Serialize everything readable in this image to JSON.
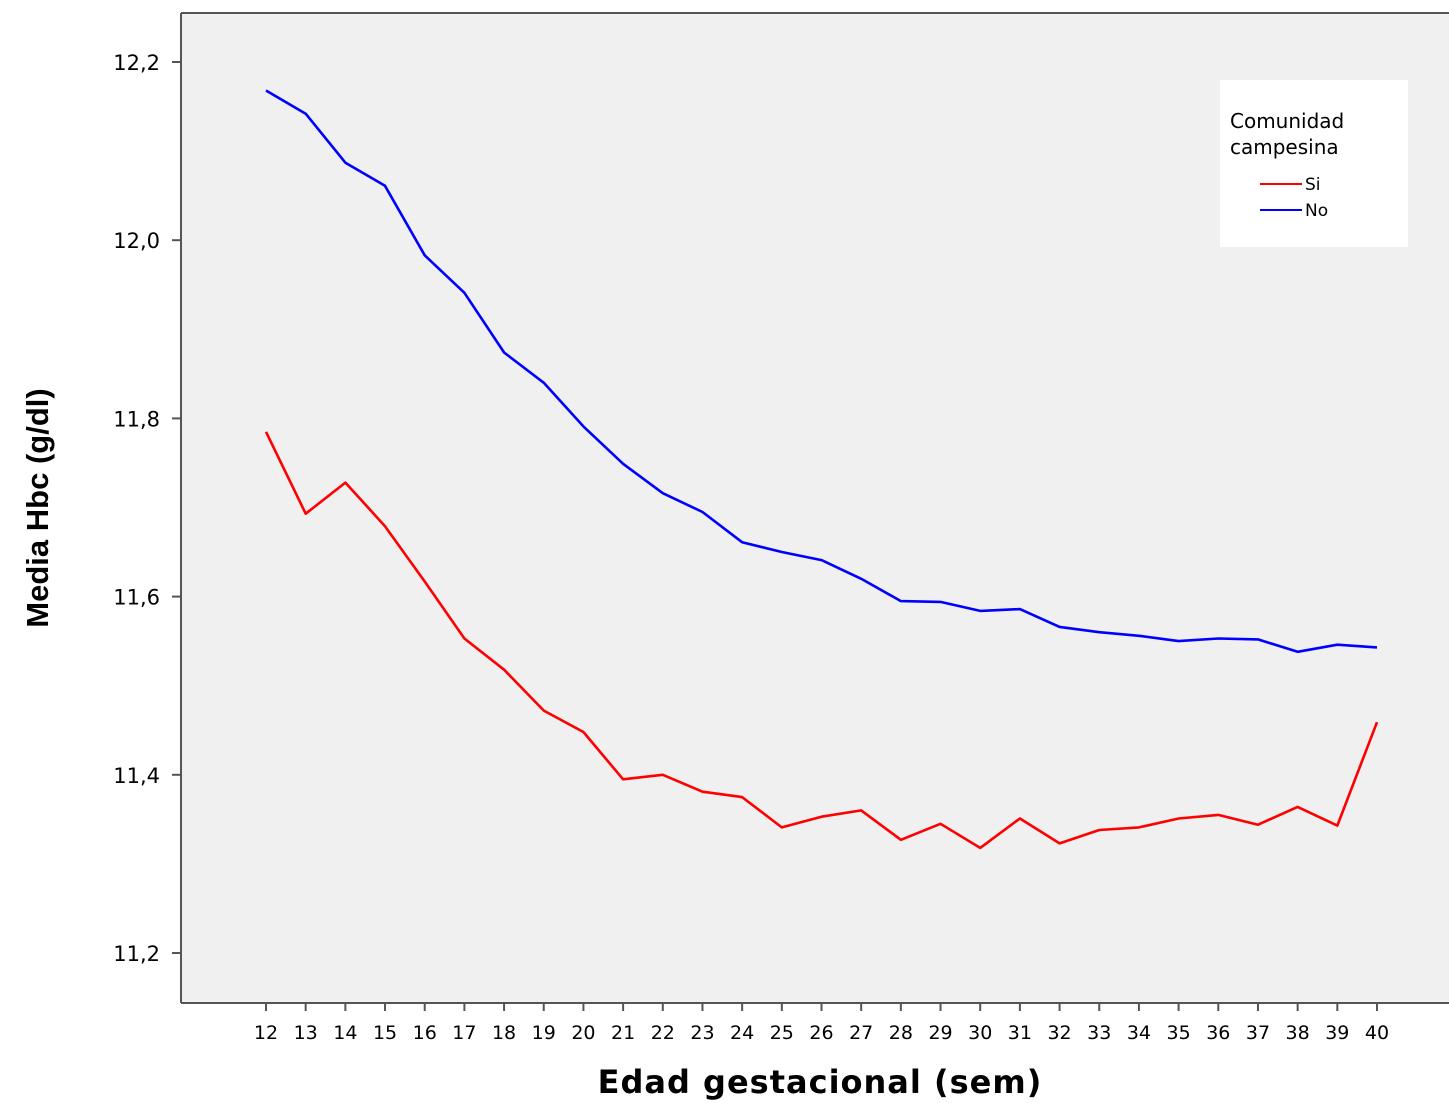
{
  "chart_data": {
    "type": "line",
    "xlabel": "Edad gestacional (sem)",
    "ylabel": "Media Hbc (g/dl)",
    "x": [
      12,
      13,
      14,
      15,
      16,
      17,
      18,
      19,
      20,
      21,
      22,
      23,
      24,
      25,
      26,
      27,
      28,
      29,
      30,
      31,
      32,
      33,
      34,
      35,
      36,
      37,
      38,
      39,
      40
    ],
    "ylim": [
      11.14,
      12.25
    ],
    "yticks": [
      "11,2",
      "11,4",
      "11,6",
      "11,8",
      "12,0",
      "12,2"
    ],
    "ytick_values": [
      11.2,
      11.4,
      11.6,
      11.8,
      12.0,
      12.2
    ],
    "grid": false,
    "legend": {
      "title": "Comunidad campesina",
      "title_lines": [
        "Comunidad",
        "campesina"
      ],
      "placement": "top-right"
    },
    "series": [
      {
        "name": "Si",
        "color": "#ff0000",
        "values": [
          11.785,
          11.693,
          11.728,
          11.679,
          11.617,
          11.553,
          11.518,
          11.472,
          11.448,
          11.395,
          11.4,
          11.381,
          11.375,
          11.341,
          11.353,
          11.36,
          11.327,
          11.345,
          11.318,
          11.351,
          11.323,
          11.338,
          11.341,
          11.351,
          11.355,
          11.344,
          11.364,
          11.343,
          11.459
        ]
      },
      {
        "name": "No",
        "color": "#0000ff",
        "values": [
          12.168,
          12.142,
          12.087,
          12.061,
          11.983,
          11.941,
          11.874,
          11.84,
          11.791,
          11.749,
          11.716,
          11.695,
          11.661,
          11.65,
          11.641,
          11.62,
          11.595,
          11.594,
          11.584,
          11.586,
          11.566,
          11.56,
          11.556,
          11.55,
          11.553,
          11.552,
          11.538,
          11.546,
          11.543
        ]
      }
    ]
  }
}
